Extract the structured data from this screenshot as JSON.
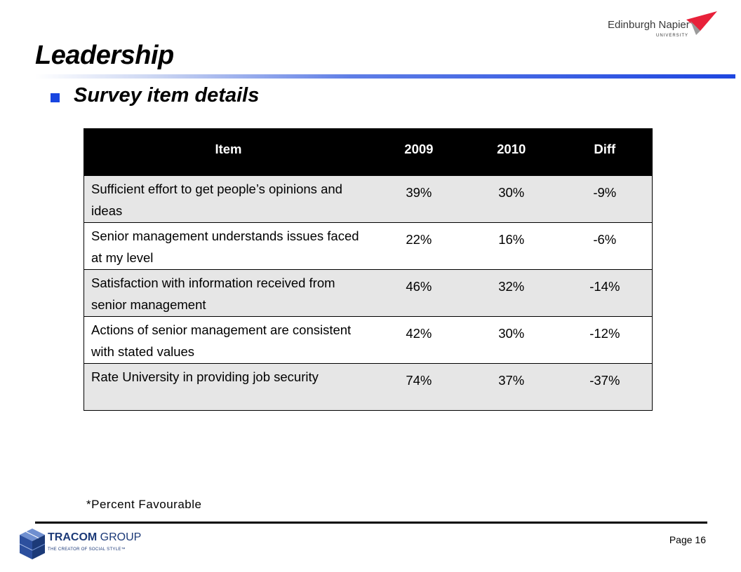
{
  "header": {
    "title": "Leadership",
    "subtitle": "Survey item details"
  },
  "logos": {
    "university_name": "Edinburgh Napier",
    "university_sub": "UNIVERSITY",
    "tracom_name": "TRACOM",
    "tracom_group": "GROUP",
    "tracom_tagline": "THE CREATOR OF SOCIAL STYLE™"
  },
  "table": {
    "columns": [
      "Item",
      "2009",
      "2010",
      "Diff"
    ],
    "rows": [
      {
        "item": "Sufficient effort to get people’s opinions and ideas",
        "y2009": "39%",
        "y2010": "30%",
        "diff": "-9%"
      },
      {
        "item": "Senior management understands issues faced at my level",
        "y2009": "22%",
        "y2010": "16%",
        "diff": "-6%"
      },
      {
        "item": "Satisfaction with information received from senior management",
        "y2009": "46%",
        "y2010": "32%",
        "diff": "-14%"
      },
      {
        "item": "Actions of senior management are consistent with stated values",
        "y2009": "42%",
        "y2010": "30%",
        "diff": "-12%"
      },
      {
        "item": "Rate University in providing job security",
        "y2009": "74%",
        "y2010": "37%",
        "diff": "-37%"
      }
    ]
  },
  "footer": {
    "note": "*Percent Favourable",
    "page": "Page 16"
  },
  "colors": {
    "accent": "#1846e0",
    "header_bg": "#000000",
    "row_shade": "#e6e6e6",
    "napier_red": "#e8213a",
    "tracom_blue": "#1c3a78"
  }
}
